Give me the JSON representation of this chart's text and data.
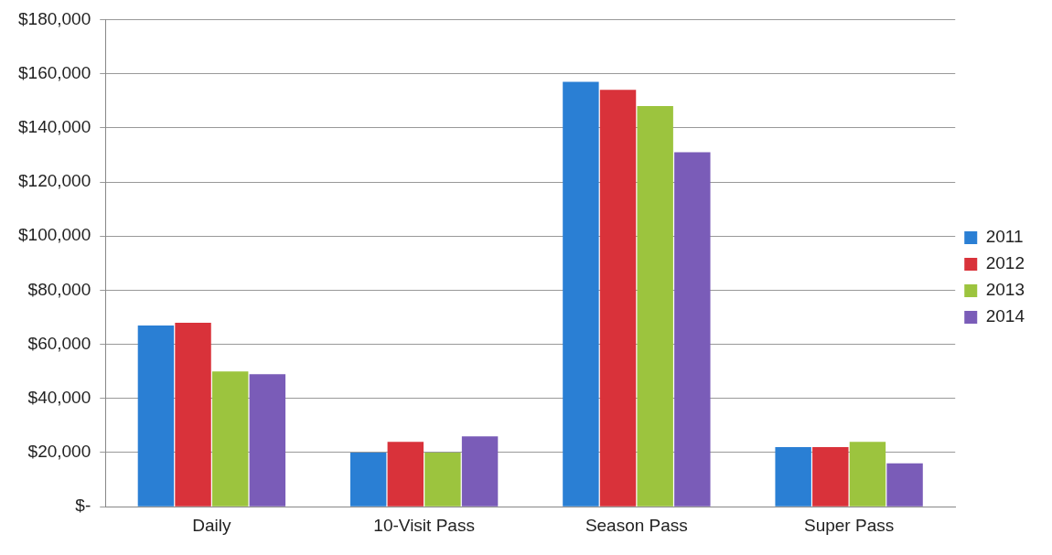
{
  "chart_data": {
    "type": "bar",
    "categories": [
      "Daily",
      "10-Visit Pass",
      "Season Pass",
      "Super Pass"
    ],
    "series": [
      {
        "name": "2011",
        "color": "#2a7fd4",
        "values": [
          67000,
          20000,
          157000,
          22000
        ]
      },
      {
        "name": "2012",
        "color": "#d9323a",
        "values": [
          68000,
          24000,
          154000,
          22000
        ]
      },
      {
        "name": "2013",
        "color": "#9cc43e",
        "values": [
          50000,
          20000,
          148000,
          24000
        ]
      },
      {
        "name": "2014",
        "color": "#7a5cb8",
        "values": [
          49000,
          26000,
          131000,
          16000
        ]
      }
    ],
    "ylim": [
      0,
      180000
    ],
    "yticks": [
      {
        "value": 0,
        "label": "$-"
      },
      {
        "value": 20000,
        "label": "$20,000"
      },
      {
        "value": 40000,
        "label": "$40,000"
      },
      {
        "value": 60000,
        "label": "$60,000"
      },
      {
        "value": 80000,
        "label": "$80,000"
      },
      {
        "value": 100000,
        "label": "$100,000"
      },
      {
        "value": 120000,
        "label": "$120,000"
      },
      {
        "value": 140000,
        "label": "$140,000"
      },
      {
        "value": 160000,
        "label": "$160,000"
      },
      {
        "value": 180000,
        "label": "$180,000"
      }
    ],
    "grid": "y",
    "legend": "right"
  }
}
